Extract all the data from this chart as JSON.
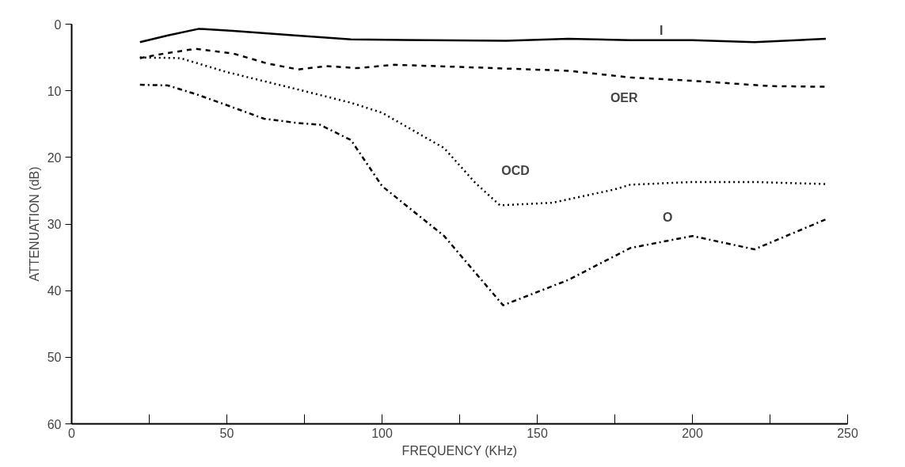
{
  "chart_data": {
    "type": "line",
    "xlabel": "FREQUENCY (KHz)",
    "ylabel": "ATTENUATION (dB)",
    "xlim": [
      0,
      250
    ],
    "ylim": [
      60,
      0
    ],
    "xticks": [
      0,
      {
        "value": 25,
        "label": null
      },
      50,
      {
        "value": 75,
        "label": null
      },
      100,
      {
        "value": 125,
        "label": null
      },
      150,
      {
        "value": 175,
        "label": null
      },
      200,
      {
        "value": 225,
        "label": null
      },
      250
    ],
    "yticks": [
      0,
      10,
      20,
      30,
      40,
      50,
      60
    ],
    "grid": false,
    "marker": "none",
    "series": [
      {
        "color": "#000000",
        "line_style": "solid",
        "x": [
          22,
          31,
          41,
          52,
          72,
          90,
          140,
          160,
          180,
          200,
          220,
          243
        ],
        "values": [
          2.7,
          1.7,
          0.7,
          1.0,
          1.7,
          2.3,
          2.5,
          2.2,
          2.4,
          2.4,
          2.7,
          2.2
        ]
      },
      {
        "color": "#000000",
        "line_style": "dashed",
        "x": [
          22,
          30,
          40,
          52,
          63,
          73,
          82,
          92,
          104,
          130,
          160,
          180,
          200,
          225,
          243
        ],
        "values": [
          5.1,
          4.4,
          3.7,
          4.4,
          5.9,
          6.8,
          6.3,
          6.6,
          6.1,
          6.5,
          7.0,
          8.0,
          8.5,
          9.3,
          9.4
        ]
      },
      {
        "color": "#000000",
        "line_style": "dotted",
        "x": [
          22,
          35,
          50,
          72,
          90,
          100,
          120,
          130,
          138,
          155,
          175,
          180,
          200,
          220,
          243
        ],
        "values": [
          5.0,
          5.1,
          7.2,
          9.7,
          11.8,
          13.3,
          18.6,
          23.8,
          27.2,
          26.8,
          24.8,
          24.1,
          23.7,
          23.7,
          24.0
        ]
      },
      {
        "color": "#000000",
        "line_style": "dashdot",
        "x": [
          22,
          31,
          40,
          52,
          62,
          72,
          80,
          90,
          100,
          120,
          139,
          160,
          180,
          200,
          220,
          243
        ],
        "values": [
          9.1,
          9.2,
          10.5,
          12.5,
          14.2,
          14.8,
          15.1,
          17.4,
          24.3,
          31.8,
          42.2,
          38.4,
          33.6,
          31.8,
          33.8,
          29.3
        ]
      }
    ],
    "annotations": [
      "I",
      "OER",
      "OCD",
      "O"
    ]
  }
}
